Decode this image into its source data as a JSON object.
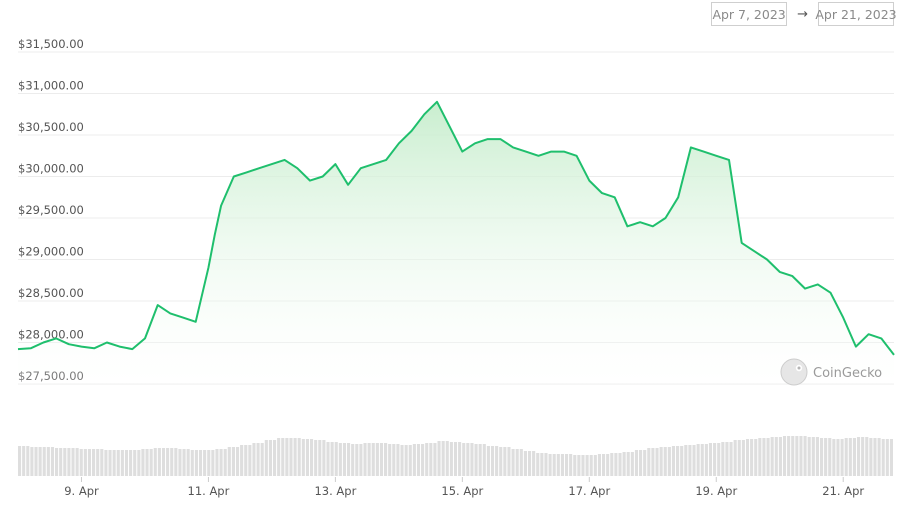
{
  "date_range": {
    "start": "Apr 7, 2023",
    "end": "Apr 21, 2023",
    "separator": "→"
  },
  "watermark": {
    "text": "CoinGecko",
    "icon": "gecko-icon"
  },
  "colors": {
    "line": "#1fbf6d",
    "fill_top": "#c9efd0",
    "grid": "#ececec",
    "volume": "#dedede"
  },
  "chart_data": {
    "type": "line",
    "x_ticks": [
      "9. Apr",
      "11. Apr",
      "13. Apr",
      "15. Apr",
      "17. Apr",
      "19. Apr",
      "21. Apr"
    ],
    "y_ticks": [
      "$27,500.00",
      "$28,000.00",
      "$28,500.00",
      "$29,000.00",
      "$29,500.00",
      "$30,000.00",
      "$30,500.00",
      "$31,000.00",
      "$31,500.00"
    ],
    "ylim": [
      27500,
      31500
    ],
    "x_start_day": 8.0,
    "x_end_day": 21.8,
    "grid": true,
    "legend": "none",
    "series": [
      {
        "x": [
          8.0,
          8.2,
          8.4,
          8.6,
          8.8,
          9.0,
          9.2,
          9.4,
          9.6,
          9.8,
          10.0,
          10.2,
          10.4,
          10.6,
          10.8,
          11.0,
          11.1,
          11.2,
          11.4,
          11.6,
          11.8,
          12.0,
          12.2,
          12.4,
          12.6,
          12.8,
          13.0,
          13.2,
          13.4,
          13.6,
          13.8,
          14.0,
          14.2,
          14.4,
          14.6,
          14.8,
          15.0,
          15.2,
          15.4,
          15.6,
          15.8,
          16.0,
          16.2,
          16.4,
          16.6,
          16.8,
          17.0,
          17.2,
          17.4,
          17.6,
          17.8,
          18.0,
          18.2,
          18.4,
          18.6,
          18.8,
          19.0,
          19.2,
          19.4,
          19.6,
          19.8,
          20.0,
          20.2,
          20.4,
          20.6,
          20.8,
          21.0,
          21.2,
          21.4,
          21.6,
          21.8
        ],
        "values": [
          27920,
          27930,
          28000,
          28050,
          27980,
          27950,
          27930,
          28000,
          27950,
          27920,
          28050,
          28450,
          28350,
          28300,
          28250,
          28900,
          29300,
          29650,
          30000,
          30050,
          30100,
          30150,
          30200,
          30100,
          29950,
          30000,
          30150,
          29900,
          30100,
          30150,
          30200,
          30400,
          30550,
          30750,
          30900,
          30600,
          30300,
          30400,
          30450,
          30450,
          30350,
          30300,
          30250,
          30300,
          30300,
          30250,
          29950,
          29800,
          29750,
          29400,
          29450,
          29400,
          29500,
          29750,
          30350,
          30300,
          30250,
          30200,
          29200,
          29100,
          29000,
          28850,
          28800,
          28650,
          28700,
          28600,
          28300,
          27950,
          28100,
          28050,
          27850
        ]
      }
    ],
    "volume": [
      30,
      29,
      29,
      28,
      28,
      27,
      27,
      26,
      26,
      26,
      27,
      28,
      28,
      27,
      26,
      26,
      27,
      29,
      31,
      33,
      36,
      38,
      38,
      37,
      36,
      34,
      33,
      32,
      33,
      33,
      32,
      31,
      32,
      33,
      35,
      34,
      33,
      32,
      30,
      29,
      27,
      25,
      23,
      22,
      22,
      21,
      21,
      22,
      23,
      24,
      26,
      28,
      29,
      30,
      31,
      32,
      33,
      34,
      36,
      37,
      38,
      39,
      40,
      40,
      39,
      38,
      37,
      38,
      39,
      38,
      37
    ]
  }
}
